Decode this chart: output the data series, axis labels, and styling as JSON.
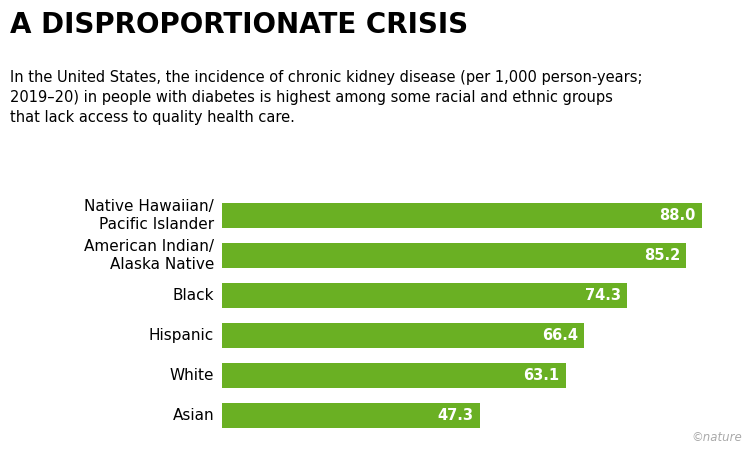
{
  "title": "A DISPROPORTIONATE CRISIS",
  "subtitle": "In the United States, the incidence of chronic kidney disease (per 1,000 person-years;\n2019–20) in people with diabetes is highest among some racial and ethnic groups\nthat lack access to quality health care.",
  "categories": [
    "Native Hawaiian/\nPacific Islander",
    "American Indian/\nAlaska Native",
    "Black",
    "Hispanic",
    "White",
    "Asian"
  ],
  "values": [
    88.0,
    85.2,
    74.3,
    66.4,
    63.1,
    47.3
  ],
  "bar_color": "#6ab023",
  "label_color": "#ffffff",
  "background_color": "#ffffff",
  "xlim": [
    0,
    95
  ],
  "title_fontsize": 20,
  "subtitle_fontsize": 10.5,
  "bar_label_fontsize": 10.5,
  "category_fontsize": 11,
  "nature_label": "©nature",
  "bar_height": 0.6
}
